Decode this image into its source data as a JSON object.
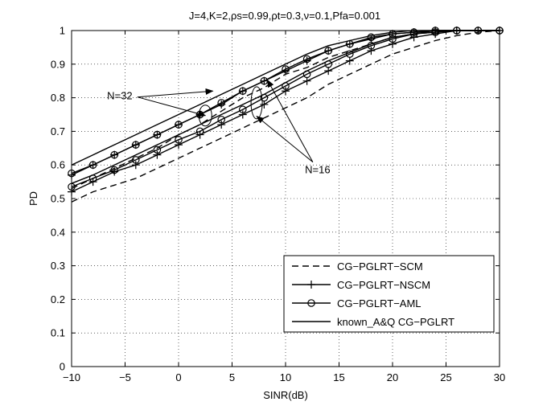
{
  "chart_data": {
    "type": "line",
    "title": "J=4,K=2,ρs=0.99,ρt=0.3,ν=0.1,Pfa=0.001",
    "xlabel": "SINR(dB)",
    "ylabel": "PD",
    "xlim": [
      -10,
      30
    ],
    "ylim": [
      0,
      1
    ],
    "xticks": [
      -10,
      -5,
      0,
      5,
      10,
      15,
      20,
      25,
      30
    ],
    "xtick_labels": [
      "−10",
      "−5",
      "0",
      "5",
      "10",
      "15",
      "20",
      "25",
      "30"
    ],
    "yticks": [
      0,
      0.1,
      0.2,
      0.3,
      0.4,
      0.5,
      0.6,
      0.7,
      0.8,
      0.9,
      1
    ],
    "ytick_labels": [
      "0",
      "0.1",
      "0.2",
      "0.3",
      "0.4",
      "0.5",
      "0.6",
      "0.7",
      "0.8",
      "0.9",
      "1"
    ],
    "grid": true,
    "legend_position": "bottom-right",
    "legend": [
      {
        "label": "CG−PGLRT−SCM",
        "style": "dashed",
        "marker": "none"
      },
      {
        "label": "CG−PGLRT−NSCM",
        "style": "solid",
        "marker": "plus"
      },
      {
        "label": "CG−PGLRT−AML",
        "style": "solid",
        "marker": "circle"
      },
      {
        "label": "known_A&Q CG−PGLRT",
        "style": "solid",
        "marker": "none"
      }
    ],
    "x": [
      -10,
      -8,
      -6,
      -4,
      -2,
      0,
      2,
      4,
      6,
      8,
      10,
      12,
      14,
      16,
      18,
      20,
      22,
      24,
      26,
      28,
      30
    ],
    "series": [
      {
        "style": "dashed",
        "marker": "none",
        "group": "N=32",
        "values": [
          0.53,
          0.56,
          0.59,
          0.62,
          0.65,
          0.69,
          0.72,
          0.76,
          0.8,
          0.83,
          0.87,
          0.89,
          0.92,
          0.94,
          0.96,
          0.98,
          0.99,
          0.995,
          1.0,
          1.0,
          1.0
        ]
      },
      {
        "style": "solid",
        "marker": "plus",
        "group": "N=32",
        "values": [
          0.57,
          0.6,
          0.63,
          0.66,
          0.69,
          0.72,
          0.75,
          0.78,
          0.82,
          0.85,
          0.88,
          0.91,
          0.94,
          0.96,
          0.975,
          0.99,
          0.995,
          1.0,
          1.0,
          1.0,
          1.0
        ]
      },
      {
        "style": "solid",
        "marker": "circle",
        "group": "N=32",
        "values": [
          0.575,
          0.6,
          0.63,
          0.66,
          0.69,
          0.72,
          0.75,
          0.785,
          0.82,
          0.85,
          0.885,
          0.915,
          0.94,
          0.96,
          0.98,
          0.99,
          0.995,
          1.0,
          1.0,
          1.0,
          1.0
        ]
      },
      {
        "style": "solid",
        "marker": "none",
        "group": "N=32",
        "values": [
          0.6,
          0.63,
          0.66,
          0.69,
          0.72,
          0.75,
          0.78,
          0.81,
          0.84,
          0.87,
          0.9,
          0.93,
          0.955,
          0.97,
          0.985,
          0.995,
          1.0,
          1.0,
          1.0,
          1.0,
          1.0
        ]
      },
      {
        "style": "dashed",
        "marker": "none",
        "group": "N=16",
        "values": [
          0.49,
          0.52,
          0.54,
          0.56,
          0.59,
          0.62,
          0.65,
          0.68,
          0.71,
          0.74,
          0.77,
          0.8,
          0.84,
          0.87,
          0.9,
          0.93,
          0.95,
          0.97,
          0.985,
          0.995,
          1.0
        ]
      },
      {
        "style": "solid",
        "marker": "plus",
        "group": "N=16",
        "values": [
          0.52,
          0.55,
          0.58,
          0.6,
          0.63,
          0.66,
          0.69,
          0.72,
          0.75,
          0.78,
          0.82,
          0.85,
          0.88,
          0.91,
          0.94,
          0.96,
          0.98,
          0.99,
          1.0,
          1.0,
          1.0
        ]
      },
      {
        "style": "solid",
        "marker": "circle",
        "group": "N=16",
        "values": [
          0.535,
          0.56,
          0.585,
          0.615,
          0.645,
          0.675,
          0.7,
          0.735,
          0.765,
          0.8,
          0.835,
          0.87,
          0.9,
          0.93,
          0.955,
          0.975,
          0.99,
          0.995,
          1.0,
          1.0,
          1.0
        ]
      },
      {
        "style": "solid",
        "marker": "none",
        "group": "N=16",
        "values": [
          0.545,
          0.57,
          0.6,
          0.63,
          0.66,
          0.69,
          0.72,
          0.75,
          0.78,
          0.81,
          0.845,
          0.88,
          0.91,
          0.935,
          0.96,
          0.98,
          0.99,
          1.0,
          1.0,
          1.0,
          1.0
        ]
      }
    ],
    "annotations": [
      {
        "text": "N=32",
        "x": -5.5,
        "y": 0.795
      },
      {
        "text": "N=16",
        "x": 13,
        "y": 0.575
      }
    ]
  }
}
